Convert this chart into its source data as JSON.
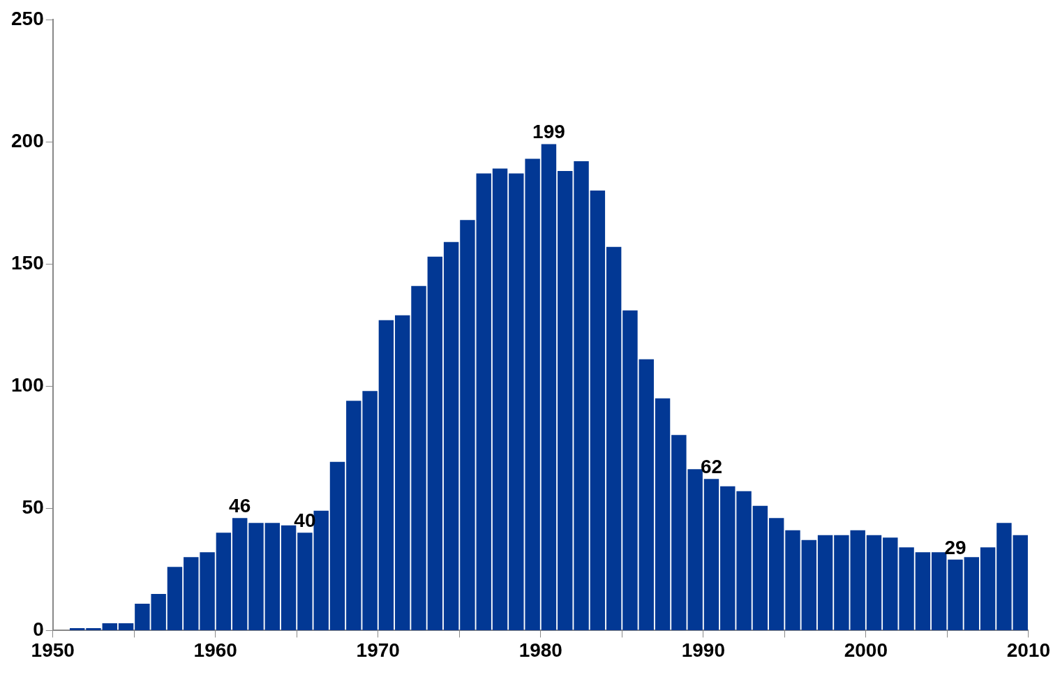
{
  "chart_data": {
    "type": "histogram",
    "color": "#023894",
    "bins": [
      1951,
      1952,
      1953,
      1954,
      1955,
      1956,
      1957,
      1958,
      1959,
      1960,
      1961,
      1962,
      1963,
      1964,
      1965,
      1966,
      1967,
      1968,
      1969,
      1970,
      1971,
      1972,
      1973,
      1974,
      1975,
      1976,
      1977,
      1978,
      1979,
      1980,
      1981,
      1982,
      1983,
      1984,
      1985,
      1986,
      1987,
      1988,
      1989,
      1990,
      1991,
      1992,
      1993,
      1994,
      1995,
      1996,
      1997,
      1998,
      1999,
      2000,
      2001,
      2002,
      2003,
      2004,
      2005,
      2006,
      2007,
      2008,
      2009,
      2010
    ],
    "values": [
      1,
      1,
      3,
      3,
      11,
      15,
      26,
      30,
      32,
      40,
      46,
      44,
      44,
      43,
      40,
      49,
      69,
      94,
      98,
      127,
      129,
      141,
      153,
      159,
      168,
      187,
      189,
      187,
      193,
      199,
      188,
      192,
      180,
      157,
      131,
      111,
      95,
      80,
      66,
      62,
      59,
      57,
      51,
      46,
      41,
      37,
      39,
      39,
      41,
      39,
      38,
      34,
      32,
      32,
      29,
      30,
      34,
      44,
      39
    ],
    "value_labels": [
      null,
      null,
      null,
      null,
      null,
      null,
      null,
      null,
      null,
      null,
      "46",
      null,
      null,
      null,
      "40",
      null,
      null,
      null,
      null,
      null,
      null,
      null,
      null,
      null,
      null,
      null,
      null,
      null,
      null,
      "199",
      null,
      null,
      null,
      null,
      null,
      null,
      null,
      null,
      null,
      "62",
      null,
      null,
      null,
      null,
      null,
      null,
      null,
      null,
      null,
      null,
      null,
      null,
      null,
      null,
      "29",
      null,
      null,
      null,
      null
    ],
    "xlim": [
      1950,
      2010
    ],
    "xticks": [
      1950,
      {
        "value": 1955,
        "label": null
      },
      1960,
      {
        "value": 1965,
        "label": null
      },
      1970,
      {
        "value": 1975,
        "label": null
      },
      1980,
      {
        "value": 1985,
        "label": null
      },
      1990,
      {
        "value": 1995,
        "label": null
      },
      2000,
      {
        "value": 2005,
        "label": null
      },
      2010
    ],
    "ylim": [
      0,
      250
    ],
    "yticks": [
      0,
      50,
      100,
      150,
      200,
      250
    ],
    "grid": false,
    "legend": false
  }
}
